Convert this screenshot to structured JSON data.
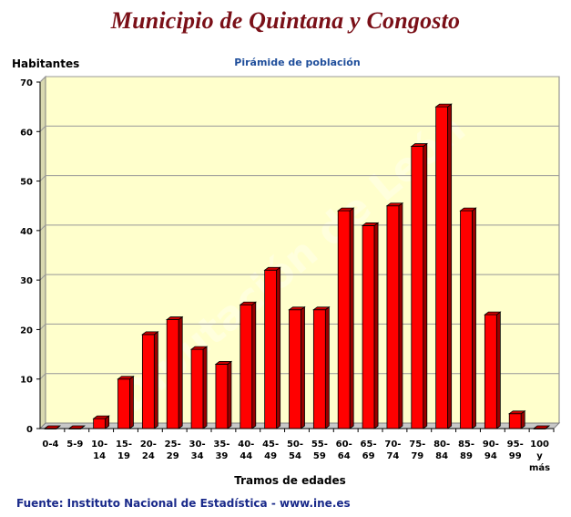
{
  "header": {
    "title": "Municipio de Quintana y Congosto",
    "subtitle": "Pirámide de población"
  },
  "source": "Fuente: Instituto Nacional de Estadística - www.ine.es",
  "watermark": "Diputación de León",
  "colors": {
    "title": "#7a0f17",
    "subtitle": "#1f4e9b",
    "plot_background": "#ffffcc",
    "bar": "#ff0000",
    "bar_side": "#990000",
    "bar_top": "#cc0000",
    "source": "#1a2a8a"
  },
  "chart_data": {
    "type": "bar",
    "title": "Pirámide de población",
    "ylabel": "Habitantes",
    "xlabel": "Tramos de edades",
    "ylim": [
      0,
      70
    ],
    "yticks": [
      0,
      10,
      20,
      30,
      40,
      50,
      60,
      70
    ],
    "grid": true,
    "categories": [
      "0-4",
      "5-9",
      "10-14",
      "15-19",
      "20-24",
      "25-29",
      "30-34",
      "35-39",
      "40-44",
      "45-49",
      "50-54",
      "55-59",
      "60-64",
      "65-69",
      "70-74",
      "75-79",
      "80-84",
      "85-89",
      "90-94",
      "95-99",
      "100 y más"
    ],
    "values": [
      0,
      0,
      2,
      10,
      19,
      22,
      16,
      13,
      25,
      32,
      24,
      24,
      44,
      41,
      45,
      57,
      65,
      44,
      23,
      3,
      0
    ]
  }
}
